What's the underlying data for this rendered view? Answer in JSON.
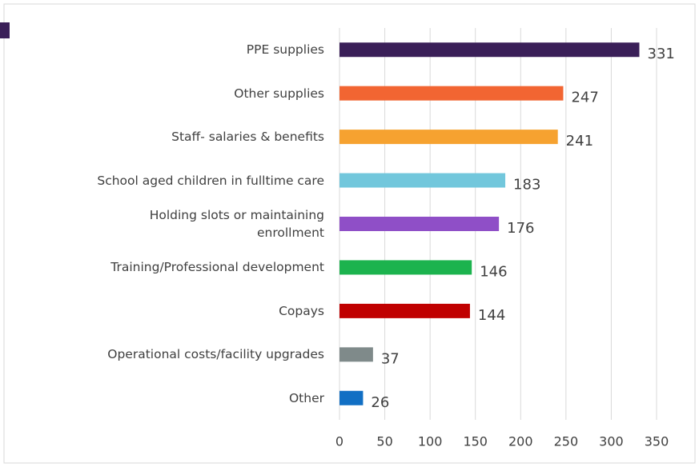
{
  "chart_data": {
    "type": "bar",
    "orientation": "horizontal",
    "categories": [
      "PPE supplies",
      "Other supplies",
      "Staff- salaries & benefits",
      "School aged children in fulltime care",
      "Holding slots or maintaining enrollment",
      "Training/Professional development",
      "Copays",
      "Operational costs/facility upgrades",
      "Other"
    ],
    "values": [
      331,
      247,
      241,
      183,
      176,
      146,
      144,
      37,
      26
    ],
    "colors": [
      "#3a1f58",
      "#f26532",
      "#f6a230",
      "#72c7dc",
      "#8f4fc7",
      "#1cb34e",
      "#c00000",
      "#7f8a8a",
      "#116fc4"
    ],
    "xlim": [
      0,
      350
    ],
    "xticks": [
      0,
      50,
      100,
      150,
      200,
      250,
      300,
      350
    ],
    "grid": true
  }
}
